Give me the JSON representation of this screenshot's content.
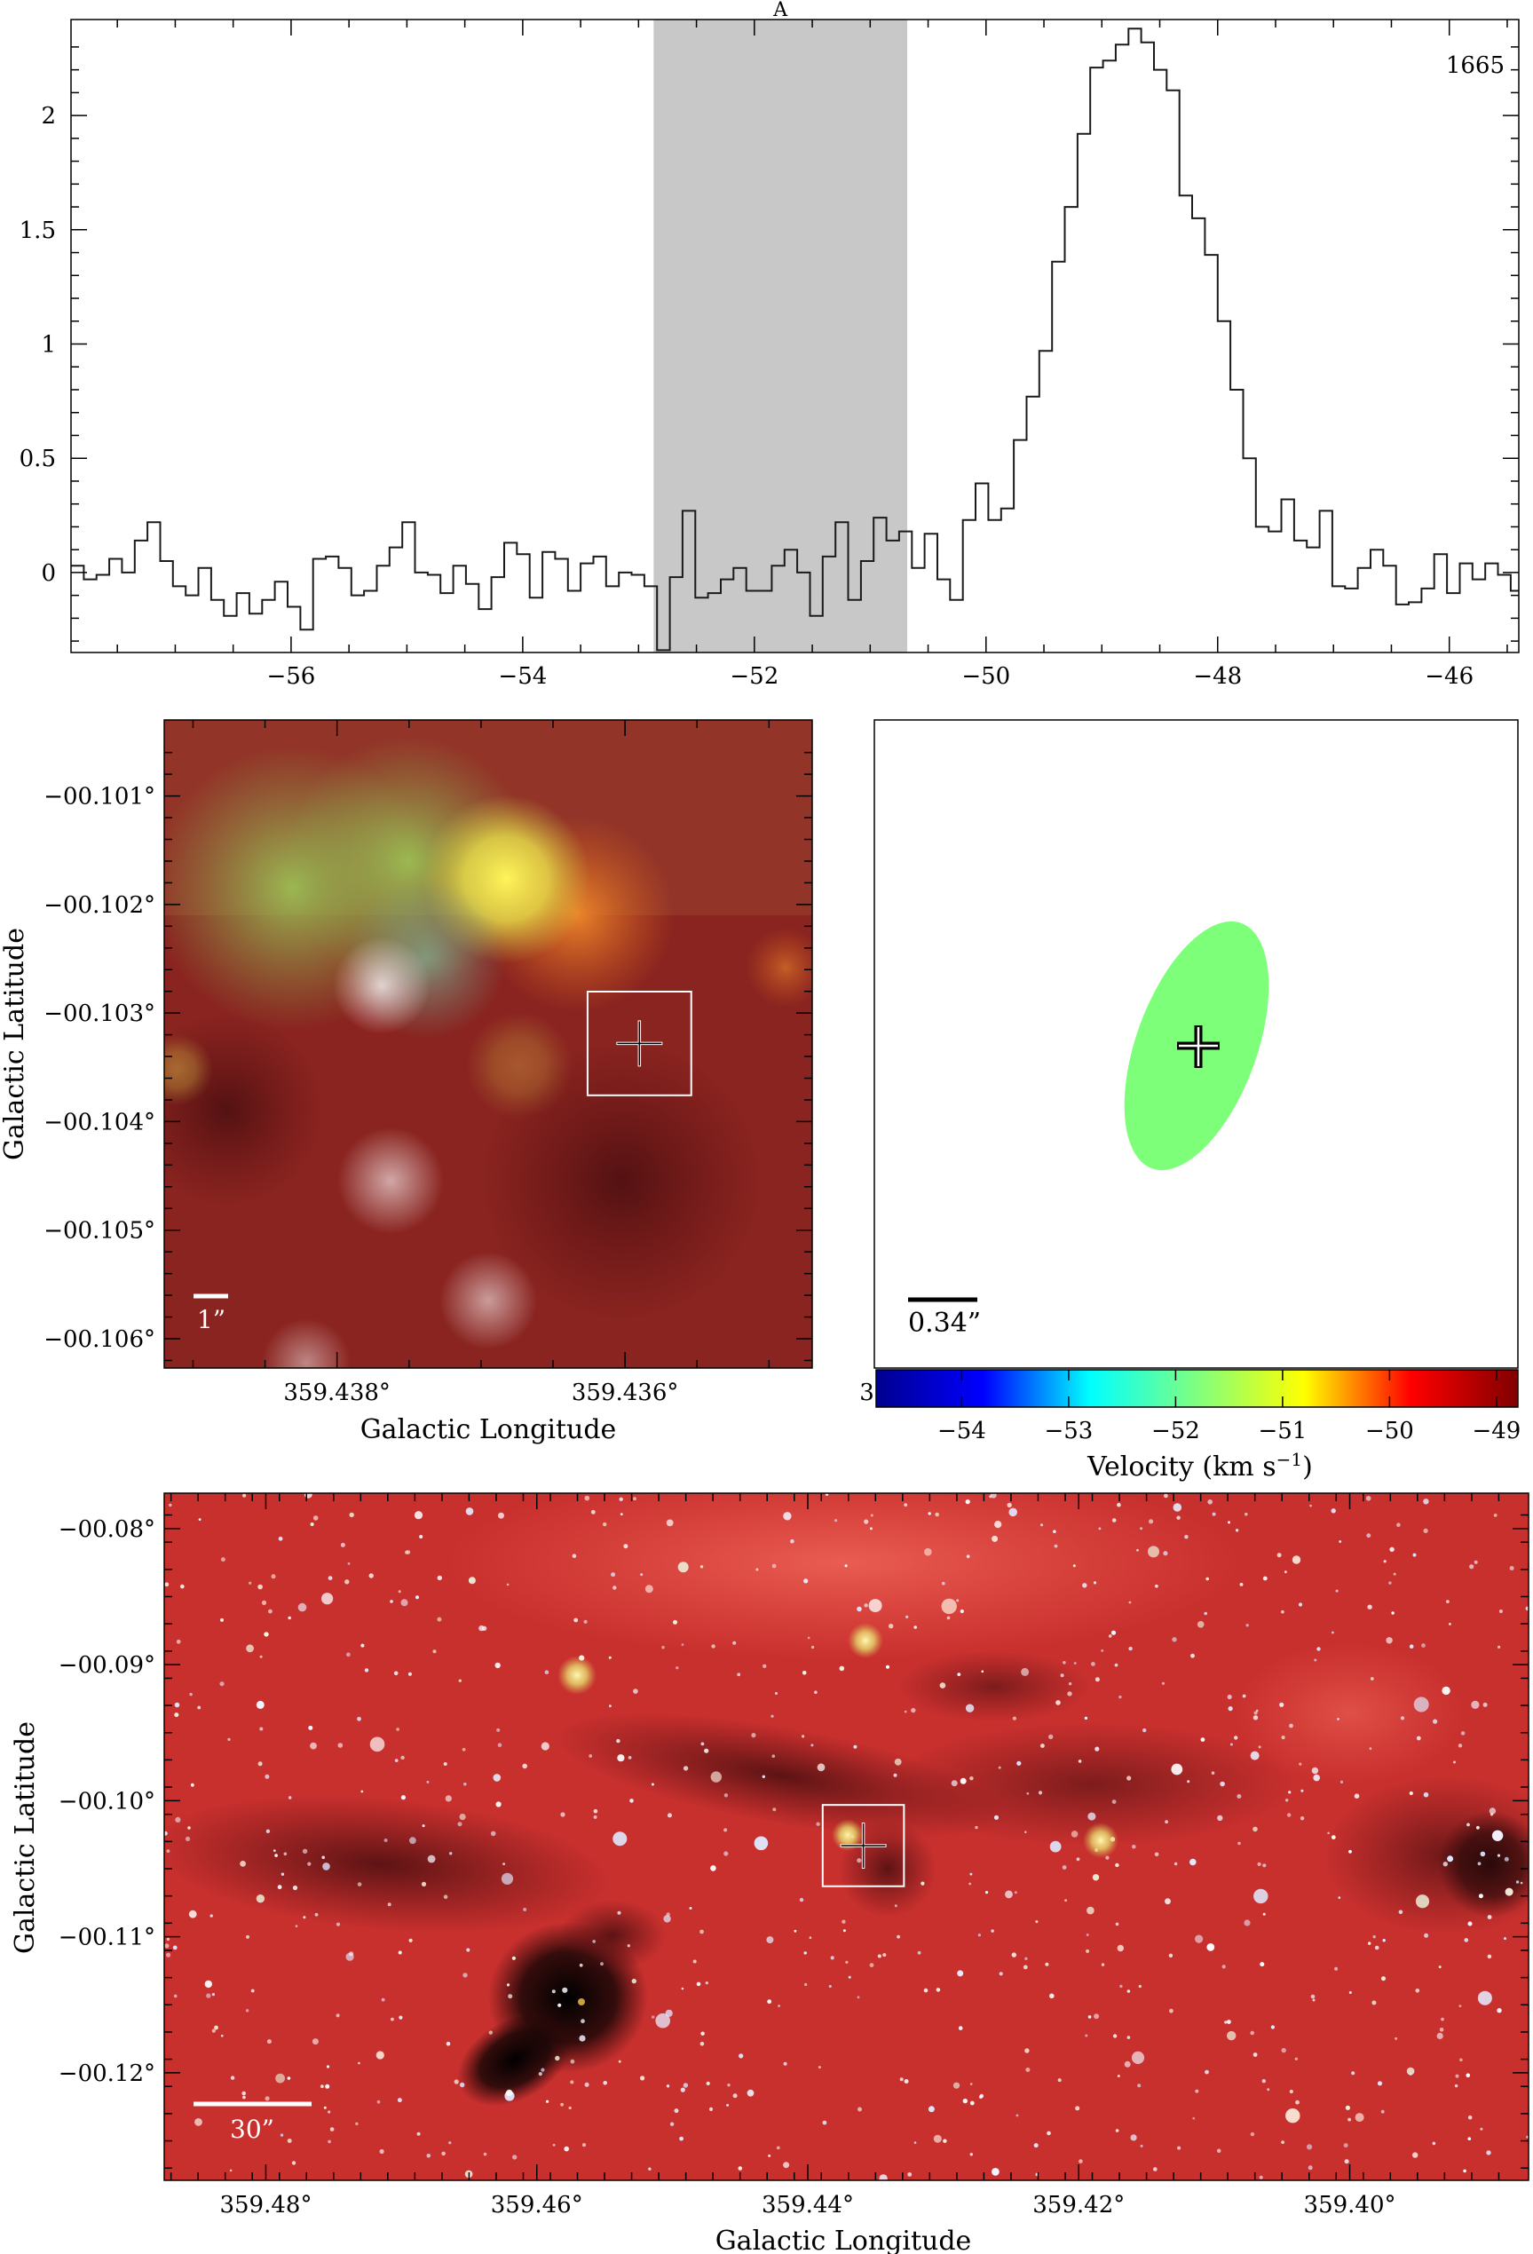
{
  "chart_data": [
    {
      "type": "line",
      "subtype": "step-spectrum",
      "title": "",
      "annotation_label": "A",
      "frequency_label": "1665",
      "xlabel": "",
      "ylabel": "",
      "xlim": [
        -57.9,
        -45.4
      ],
      "ylim": [
        -0.35,
        2.42
      ],
      "xticks": [
        -56,
        -54,
        -52,
        -50,
        -48,
        -46
      ],
      "yticks": [
        0,
        0.5,
        1,
        1.5,
        2
      ],
      "xtick_labels": [
        "−56",
        "−54",
        "−52",
        "−50",
        "−48",
        "−46"
      ],
      "ytick_labels": [
        "0",
        "0.5",
        "1",
        "1.5",
        "2"
      ],
      "highlight_range": [
        -52.87,
        -50.68
      ],
      "highlight_color": "#c8c8c8",
      "x_start": -57.9,
      "step": 0.11,
      "values": [
        0.03,
        -0.03,
        -0.01,
        0.06,
        0.0,
        0.14,
        0.22,
        0.05,
        -0.06,
        -0.1,
        0.02,
        -0.12,
        -0.19,
        -0.09,
        -0.18,
        -0.12,
        -0.04,
        -0.15,
        -0.25,
        0.06,
        0.07,
        0.02,
        -0.1,
        -0.08,
        0.03,
        0.11,
        0.22,
        0.0,
        -0.01,
        -0.09,
        0.03,
        -0.05,
        -0.16,
        -0.02,
        0.13,
        0.08,
        -0.11,
        0.09,
        0.06,
        -0.08,
        0.04,
        0.07,
        -0.06,
        0.0,
        -0.01,
        -0.06,
        -0.34,
        -0.02,
        0.27,
        -0.11,
        -0.09,
        -0.03,
        0.02,
        -0.08,
        -0.08,
        0.03,
        0.1,
        0.0,
        -0.19,
        0.07,
        0.22,
        -0.12,
        0.05,
        0.24,
        0.14,
        0.18,
        0.02,
        0.17,
        -0.03,
        -0.12,
        0.23,
        0.39,
        0.23,
        0.28,
        0.58,
        0.77,
        0.97,
        1.36,
        1.6,
        1.92,
        2.21,
        2.24,
        2.31,
        2.38,
        2.32,
        2.2,
        2.11,
        1.65,
        1.55,
        1.39,
        1.1,
        0.8,
        0.5,
        0.2,
        0.18,
        0.32,
        0.14,
        0.11,
        0.27,
        -0.06,
        -0.07,
        0.02,
        0.1,
        0.03,
        -0.14,
        -0.13,
        -0.07,
        0.08,
        -0.09,
        0.04,
        -0.03,
        0.04,
        -0.01,
        -0.08,
        0.06,
        0.04,
        -0.03,
        0.13,
        -0.09,
        0.03,
        -0.02,
        0.15,
        0.07,
        -0.1,
        0.0,
        0.03,
        0.17,
        -0.12,
        -0.05,
        0.0,
        0.11,
        0.05,
        -0.09,
        0.04,
        -0.03,
        0.06,
        0.0,
        0.13,
        0.06,
        0.2,
        0.1,
        0.15,
        0.08,
        0.05,
        0.0,
        -0.03,
        -0.08,
        0.07,
        -0.1,
        -0.02,
        0.13,
        0.14,
        -0.2,
        -0.1,
        0.0,
        -0.2,
        0.0,
        -0.03,
        -0.04,
        0.02
      ]
    },
    {
      "type": "heatmap",
      "subtype": "rgb-image-zoom",
      "xlabel": "Galactic Longitude",
      "ylabel": "Galactic Latitude",
      "xlim": [
        359.4392,
        359.4347
      ],
      "ylim": [
        -0.10627,
        -0.1003
      ],
      "xticks": [
        359.438,
        359.436,
        359.434
      ],
      "yticks": [
        -0.101,
        -0.102,
        -0.103,
        -0.104,
        -0.105,
        -0.106
      ],
      "xtick_labels": [
        "359.438°",
        "359.436°",
        "359.434°"
      ],
      "ytick_labels": [
        "−00.101°",
        "−00.102°",
        "−00.103°",
        "−00.104°",
        "−00.105°",
        "−00.106°"
      ],
      "marker": {
        "l": 359.4359,
        "b": -0.10328,
        "box_half_width": 0.00036
      },
      "scale_bar_label": "1”"
    },
    {
      "type": "scatter",
      "subtype": "maser-spot-velocity-map",
      "xlabel": "",
      "ylabel": "",
      "colorbar_label": "Velocity (km s",
      "colorbar_label_sup": "−1",
      "colorbar_label_end": ")",
      "colorbar_range": [
        -54.8,
        -48.8
      ],
      "colorbar_ticks": [
        -54,
        -53,
        -52,
        -51,
        -50,
        -49
      ],
      "colorbar_tick_labels": [
        "−54",
        "−53",
        "−52",
        "−51",
        "−50",
        "−49"
      ],
      "colormap": [
        "#00008f",
        "#0000ff",
        "#00ffff",
        "#80ff7f",
        "#ffff00",
        "#ff0000",
        "#800000"
      ],
      "spot": {
        "velocity": -51.7,
        "color": "#7dff7a"
      },
      "scale_bar_label": "0.34”"
    },
    {
      "type": "heatmap",
      "subtype": "rgb-image-wide",
      "xlabel": "Galactic Longitude",
      "ylabel": "Galactic Latitude",
      "xlim": [
        359.4875,
        359.3868
      ],
      "ylim": [
        -0.1279,
        -0.0774
      ],
      "xticks": [
        359.48,
        359.46,
        359.44,
        359.42,
        359.4
      ],
      "yticks": [
        -0.08,
        -0.09,
        -0.1,
        -0.11,
        -0.12
      ],
      "xtick_labels": [
        "359.48°",
        "359.46°",
        "359.44°",
        "359.42°",
        "359.40°"
      ],
      "ytick_labels": [
        "−00.08°",
        "−00.09°",
        "−00.10°",
        "−00.11°",
        "−00.12°"
      ],
      "marker": {
        "l": 359.4359,
        "b": -0.1033,
        "box_half_width": 0.003
      },
      "scale_bar_label": "30”"
    }
  ]
}
